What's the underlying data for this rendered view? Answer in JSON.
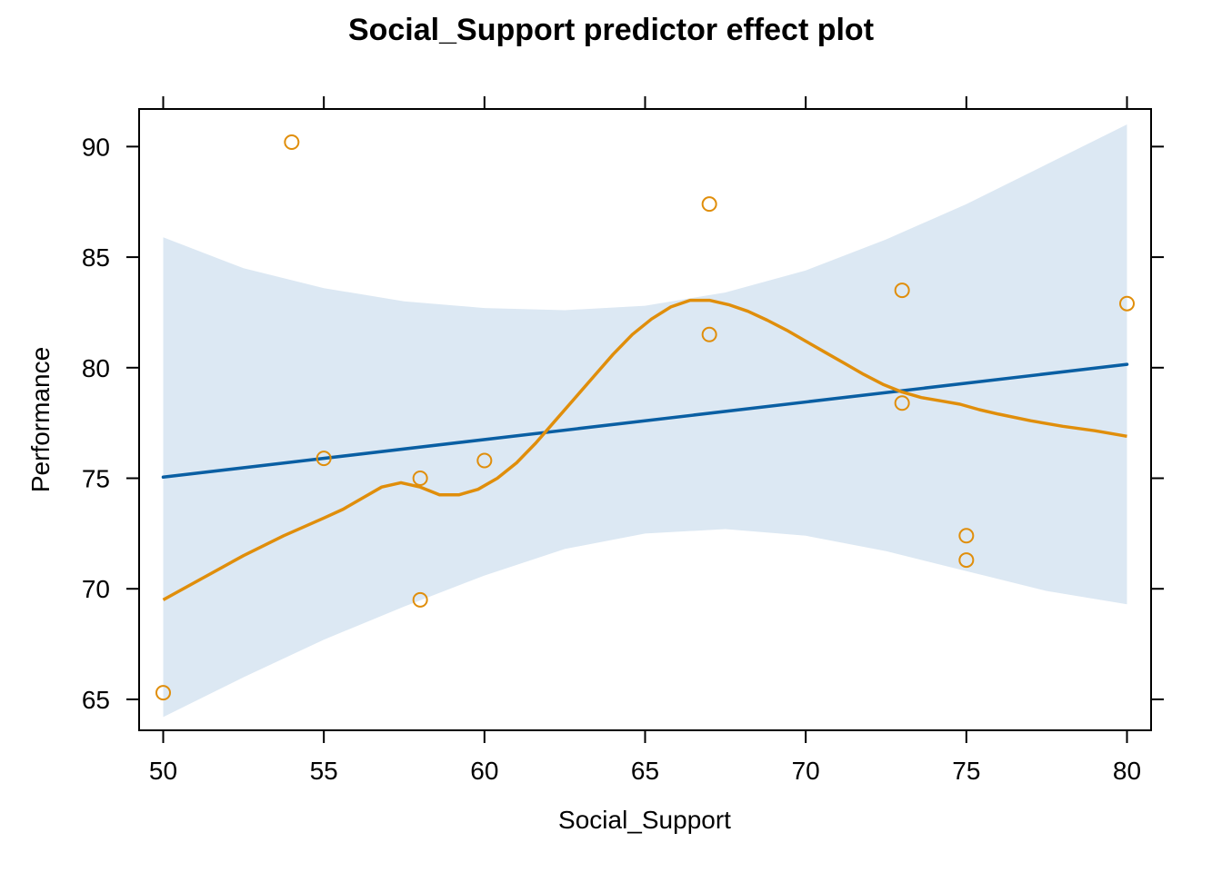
{
  "chart_data": {
    "type": "line",
    "title": "Social_Support predictor effect plot",
    "xlabel": "Social_Support",
    "ylabel": "Performance",
    "xlim": [
      49.25,
      80.75
    ],
    "ylim": [
      63.6,
      91.7
    ],
    "x_ticks": [
      50,
      55,
      60,
      65,
      70,
      75,
      80
    ],
    "y_ticks": [
      65,
      70,
      75,
      80,
      85,
      90
    ],
    "grid": false,
    "legend": "none",
    "colors": {
      "fit": "#0a5fa3",
      "band": "#dce8f3",
      "points": "#e08e0b",
      "smooth": "#e08e0b",
      "frame": "#000000"
    },
    "series": [
      {
        "type": "line",
        "x": [
          50,
          80
        ],
        "y": [
          75.05,
          80.15
        ]
      },
      {
        "type": "band",
        "x": [
          50,
          52.5,
          55,
          57.5,
          60,
          62.5,
          65,
          67.5,
          70,
          72.5,
          75,
          77.5,
          80
        ],
        "lower": [
          64.2,
          66.0,
          67.7,
          69.2,
          70.6,
          71.8,
          72.5,
          72.7,
          72.4,
          71.7,
          70.8,
          69.9,
          69.3
        ],
        "upper": [
          85.9,
          84.5,
          83.6,
          83.0,
          82.7,
          82.6,
          82.8,
          83.4,
          84.4,
          85.8,
          87.4,
          89.2,
          91.0
        ]
      },
      {
        "type": "scatter",
        "x": [
          50,
          54,
          55,
          58,
          58,
          60,
          67,
          67,
          73,
          73,
          75,
          75,
          80
        ],
        "y": [
          65.3,
          90.2,
          75.9,
          75.0,
          69.5,
          75.8,
          87.4,
          81.5,
          83.5,
          78.4,
          72.4,
          71.3,
          82.9
        ]
      },
      {
        "type": "line",
        "x": [
          50,
          51.25,
          52.5,
          53.75,
          55,
          55.6,
          56.2,
          56.8,
          57.4,
          58,
          58.6,
          59.2,
          59.8,
          60.4,
          61,
          61.6,
          62.2,
          62.8,
          63.4,
          64,
          64.6,
          65.2,
          65.8,
          66.4,
          67,
          67.6,
          68.2,
          68.8,
          69.4,
          70,
          70.6,
          71.2,
          71.8,
          72.4,
          73,
          73.6,
          74.2,
          74.8,
          75.4,
          76,
          77,
          78,
          79,
          80
        ],
        "y": [
          69.5,
          70.5,
          71.5,
          72.4,
          73.2,
          73.6,
          74.1,
          74.6,
          74.8,
          74.6,
          74.25,
          74.25,
          74.5,
          75.0,
          75.7,
          76.6,
          77.6,
          78.6,
          79.6,
          80.6,
          81.5,
          82.2,
          82.75,
          83.05,
          83.05,
          82.85,
          82.55,
          82.15,
          81.7,
          81.2,
          80.7,
          80.2,
          79.7,
          79.25,
          78.9,
          78.65,
          78.5,
          78.35,
          78.1,
          77.9,
          77.6,
          77.35,
          77.15,
          76.9
        ]
      }
    ]
  }
}
